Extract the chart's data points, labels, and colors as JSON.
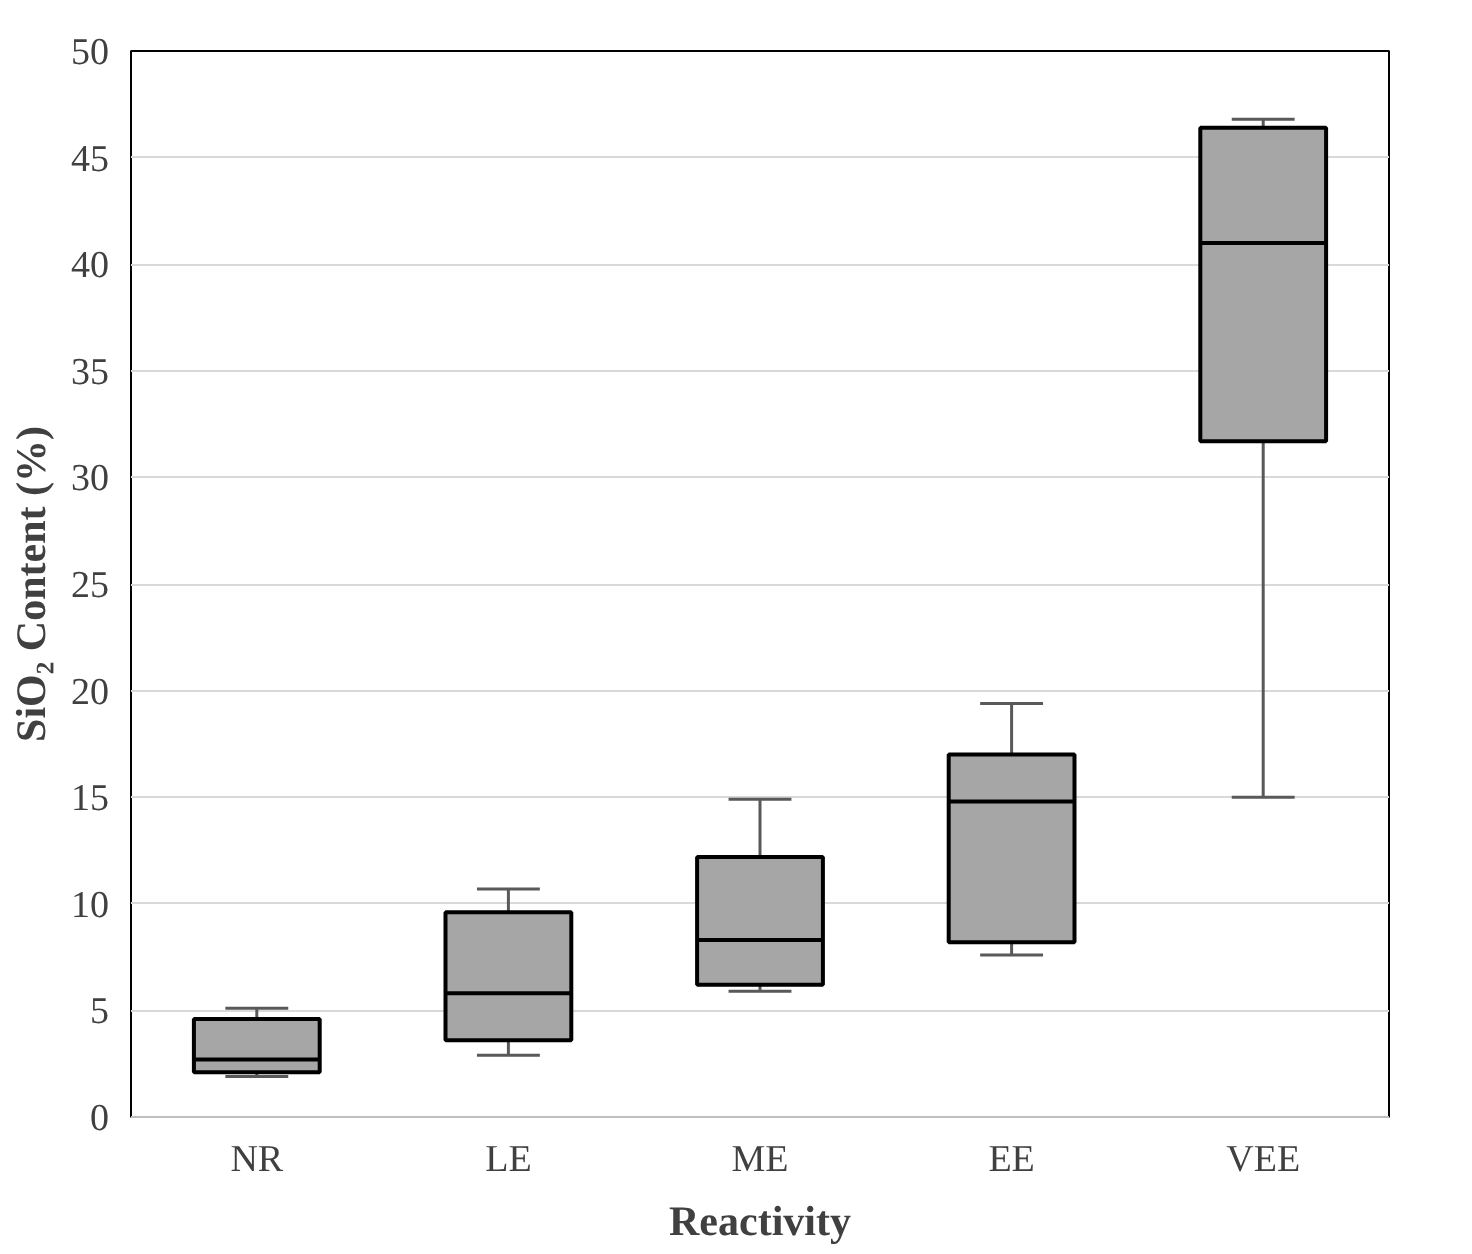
{
  "chart_data": {
    "type": "box",
    "xlabel": "Reactivity",
    "ylabel": "SiO₂ Content (%)",
    "categories": [
      "NR",
      "LE",
      "ME",
      "EE",
      "VEE"
    ],
    "color": "#a6a6a6",
    "boxes": [
      {
        "low": 1.9,
        "q1": 2.1,
        "median": 2.7,
        "q3": 4.6,
        "high": 5.1
      },
      {
        "low": 2.9,
        "q1": 3.6,
        "median": 5.8,
        "q3": 9.6,
        "high": 10.7
      },
      {
        "low": 5.9,
        "q1": 6.2,
        "median": 8.3,
        "q3": 12.2,
        "high": 14.9
      },
      {
        "low": 7.6,
        "q1": 8.2,
        "median": 14.8,
        "q3": 17.0,
        "high": 19.4
      },
      {
        "low": 15.0,
        "q1": 31.7,
        "median": 41.0,
        "q3": 46.4,
        "high": 46.8
      }
    ],
    "ylim": [
      0,
      50
    ],
    "yticks": [
      0,
      5,
      10,
      15,
      20,
      25,
      30,
      35,
      40,
      45,
      50
    ],
    "grid": "y"
  }
}
